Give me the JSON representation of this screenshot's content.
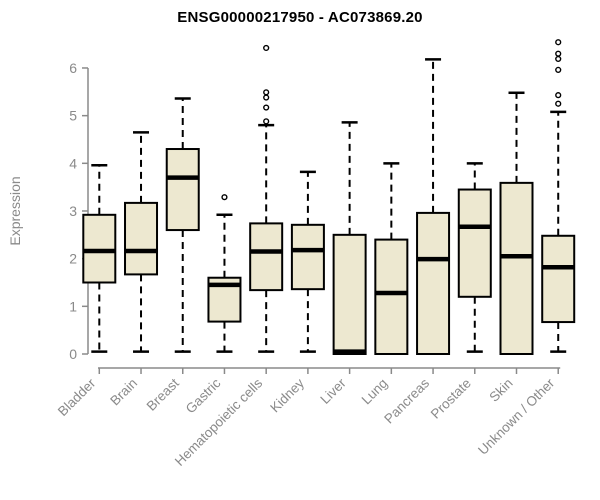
{
  "chart_data": {
    "type": "boxplot",
    "title": "ENSG00000217950 - AC073869.20",
    "xlabel": "",
    "ylabel": "Expression",
    "ylim": [
      0,
      6.6
    ],
    "yticks": [
      0,
      1,
      2,
      3,
      4,
      5,
      6
    ],
    "grid": false,
    "legend": "none",
    "categories": [
      "Bladder",
      "Brain",
      "Breast",
      "Gastric",
      "Hematopoietic cells",
      "Kidney",
      "Liver",
      "Lung",
      "Pancreas",
      "Prostate",
      "Skin",
      "Unknown / Other"
    ],
    "boxes": [
      {
        "category": "Bladder",
        "whisker_low": 0.05,
        "q1": 1.5,
        "median": 2.16,
        "q3": 2.92,
        "whisker_high": 3.96,
        "outliers": []
      },
      {
        "category": "Brain",
        "whisker_low": 0.05,
        "q1": 1.67,
        "median": 2.16,
        "q3": 3.17,
        "whisker_high": 4.65,
        "outliers": []
      },
      {
        "category": "Breast",
        "whisker_low": 0.05,
        "q1": 2.6,
        "median": 3.7,
        "q3": 4.3,
        "whisker_high": 5.36,
        "outliers": []
      },
      {
        "category": "Gastric",
        "whisker_low": 0.05,
        "q1": 0.68,
        "median": 1.45,
        "q3": 1.6,
        "whisker_high": 2.92,
        "outliers": [
          3.29
        ]
      },
      {
        "category": "Hematopoietic cells",
        "whisker_low": 0.05,
        "q1": 1.34,
        "median": 2.15,
        "q3": 2.74,
        "whisker_high": 4.8,
        "outliers": [
          4.88,
          5.17,
          5.38,
          5.49,
          6.42
        ]
      },
      {
        "category": "Kidney",
        "whisker_low": 0.05,
        "q1": 1.36,
        "median": 2.18,
        "q3": 2.71,
        "whisker_high": 3.82,
        "outliers": []
      },
      {
        "category": "Liver",
        "whisker_low": 0.0,
        "q1": 0.0,
        "median": 0.05,
        "q3": 2.5,
        "whisker_high": 4.86,
        "outliers": []
      },
      {
        "category": "Lung",
        "whisker_low": 0.0,
        "q1": 0.0,
        "median": 1.28,
        "q3": 2.4,
        "whisker_high": 4.0,
        "outliers": []
      },
      {
        "category": "Pancreas",
        "whisker_low": 0.0,
        "q1": 0.0,
        "median": 1.99,
        "q3": 2.96,
        "whisker_high": 6.18,
        "outliers": []
      },
      {
        "category": "Prostate",
        "whisker_low": 0.05,
        "q1": 1.2,
        "median": 2.67,
        "q3": 3.45,
        "whisker_high": 4.0,
        "outliers": []
      },
      {
        "category": "Skin",
        "whisker_low": 0.0,
        "q1": 0.0,
        "median": 2.05,
        "q3": 3.59,
        "whisker_high": 5.48,
        "outliers": []
      },
      {
        "category": "Unknown / Other",
        "whisker_low": 0.05,
        "q1": 0.67,
        "median": 1.82,
        "q3": 2.48,
        "whisker_high": 5.08,
        "outliers": [
          5.25,
          5.43,
          5.96,
          6.19,
          6.3,
          6.54
        ]
      }
    ],
    "colors": {
      "box_fill": "#EDE8D0",
      "box_border": "#000000",
      "median": "#000000",
      "whisker": "#000000",
      "outlier_stroke": "#000000",
      "outlier_fill": "#ffffff",
      "axis": "#8a8a8a",
      "tick_label": "#8a8a8a",
      "title": "#000000",
      "background": "#ffffff"
    }
  }
}
